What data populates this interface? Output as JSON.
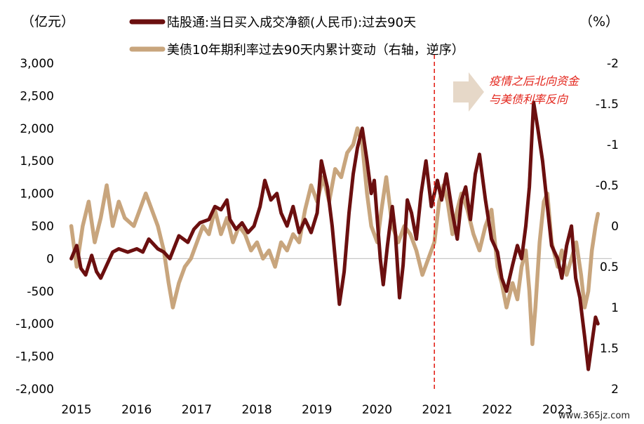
{
  "chart_data": {
    "type": "line",
    "title": "",
    "left_axis": {
      "unit": "（亿元）",
      "ylim": [
        -2000,
        3000
      ],
      "ticks": [
        -2000,
        -1500,
        -1000,
        -500,
        0,
        500,
        1000,
        1500,
        2000,
        2500,
        3000
      ],
      "tick_labels": [
        "-2,000",
        "-1,500",
        "-1,000",
        "-500",
        "0",
        "500",
        "1,000",
        "1,500",
        "2,000",
        "2,500",
        "3,000"
      ]
    },
    "right_axis": {
      "unit": "（%）",
      "inverted": true,
      "ylim": [
        -2,
        2
      ],
      "ticks": [
        -2,
        -1.5,
        -1,
        -0.5,
        0,
        0.5,
        1,
        1.5,
        2
      ],
      "tick_labels": [
        "-2",
        "-1.5",
        "-1",
        "-0.5",
        "0",
        "0.5",
        "1",
        "1.5",
        "2"
      ]
    },
    "x_axis": {
      "xlim": [
        2015.0,
        2023.95
      ],
      "ticks": [
        2015,
        2016,
        2017,
        2018,
        2019,
        2020,
        2021,
        2022,
        2023
      ],
      "tick_labels": [
        "2015",
        "2016",
        "2017",
        "2018",
        "2019",
        "2020",
        "2021",
        "2022",
        "2023"
      ]
    },
    "grid": false,
    "zero_line": true,
    "legend_placement": "top-center",
    "series": [
      {
        "name": "陆股通:当日买入成交净额(人民币):过去90天",
        "axis": "left",
        "color": "#6b0f0f",
        "points": [
          [
            2014.96,
            0
          ],
          [
            2015.05,
            200
          ],
          [
            2015.12,
            -150
          ],
          [
            2015.2,
            -250
          ],
          [
            2015.3,
            50
          ],
          [
            2015.38,
            -200
          ],
          [
            2015.45,
            -300
          ],
          [
            2015.55,
            -100
          ],
          [
            2015.65,
            100
          ],
          [
            2015.75,
            150
          ],
          [
            2015.9,
            100
          ],
          [
            2016.05,
            150
          ],
          [
            2016.15,
            100
          ],
          [
            2016.25,
            300
          ],
          [
            2016.4,
            150
          ],
          [
            2016.5,
            100
          ],
          [
            2016.6,
            0
          ],
          [
            2016.75,
            350
          ],
          [
            2016.9,
            250
          ],
          [
            2017.0,
            450
          ],
          [
            2017.1,
            550
          ],
          [
            2017.25,
            600
          ],
          [
            2017.35,
            800
          ],
          [
            2017.45,
            750
          ],
          [
            2017.55,
            900
          ],
          [
            2017.6,
            600
          ],
          [
            2017.7,
            450
          ],
          [
            2017.8,
            550
          ],
          [
            2017.9,
            400
          ],
          [
            2018.0,
            500
          ],
          [
            2018.1,
            800
          ],
          [
            2018.18,
            1200
          ],
          [
            2018.28,
            900
          ],
          [
            2018.38,
            1000
          ],
          [
            2018.45,
            700
          ],
          [
            2018.55,
            500
          ],
          [
            2018.65,
            800
          ],
          [
            2018.75,
            400
          ],
          [
            2018.85,
            600
          ],
          [
            2018.95,
            400
          ],
          [
            2019.05,
            700
          ],
          [
            2019.12,
            1500
          ],
          [
            2019.22,
            1100
          ],
          [
            2019.3,
            500
          ],
          [
            2019.38,
            -300
          ],
          [
            2019.42,
            -700
          ],
          [
            2019.5,
            -200
          ],
          [
            2019.58,
            700
          ],
          [
            2019.65,
            1300
          ],
          [
            2019.72,
            1700
          ],
          [
            2019.8,
            2000
          ],
          [
            2019.88,
            1500
          ],
          [
            2019.95,
            1000
          ],
          [
            2020.0,
            1200
          ],
          [
            2020.05,
            600
          ],
          [
            2020.1,
            0
          ],
          [
            2020.15,
            -400
          ],
          [
            2020.22,
            200
          ],
          [
            2020.3,
            800
          ],
          [
            2020.35,
            400
          ],
          [
            2020.42,
            -600
          ],
          [
            2020.48,
            -100
          ],
          [
            2020.55,
            900
          ],
          [
            2020.62,
            700
          ],
          [
            2020.7,
            300
          ],
          [
            2020.78,
            1000
          ],
          [
            2020.86,
            1500
          ],
          [
            2020.95,
            800
          ],
          [
            2021.05,
            1200
          ],
          [
            2021.12,
            900
          ],
          [
            2021.2,
            1300
          ],
          [
            2021.3,
            700
          ],
          [
            2021.38,
            300
          ],
          [
            2021.45,
            900
          ],
          [
            2021.52,
            1100
          ],
          [
            2021.6,
            600
          ],
          [
            2021.68,
            1300
          ],
          [
            2021.75,
            1600
          ],
          [
            2021.85,
            900
          ],
          [
            2021.95,
            300
          ],
          [
            2022.05,
            100
          ],
          [
            2022.12,
            -300
          ],
          [
            2022.2,
            -500
          ],
          [
            2022.3,
            -100
          ],
          [
            2022.38,
            200
          ],
          [
            2022.45,
            0
          ],
          [
            2022.52,
            500
          ],
          [
            2022.58,
            1100
          ],
          [
            2022.65,
            2400
          ],
          [
            2022.72,
            2000
          ],
          [
            2022.8,
            1500
          ],
          [
            2022.88,
            800
          ],
          [
            2022.95,
            200
          ],
          [
            2023.05,
            0
          ],
          [
            2023.12,
            -300
          ],
          [
            2023.2,
            200
          ],
          [
            2023.28,
            500
          ],
          [
            2023.35,
            -300
          ],
          [
            2023.42,
            -600
          ],
          [
            2023.5,
            -1200
          ],
          [
            2023.56,
            -1700
          ],
          [
            2023.62,
            -1300
          ],
          [
            2023.68,
            -900
          ],
          [
            2023.72,
            -1000
          ]
        ]
      },
      {
        "name": "美债10年期利率过去90天内累计变动（右轴，逆序）",
        "axis": "right",
        "color": "#c8a57d",
        "points": [
          [
            2014.96,
            0.0
          ],
          [
            2015.05,
            0.5
          ],
          [
            2015.15,
            0.0
          ],
          [
            2015.25,
            -0.3
          ],
          [
            2015.35,
            0.2
          ],
          [
            2015.45,
            -0.1
          ],
          [
            2015.55,
            -0.5
          ],
          [
            2015.65,
            0.0
          ],
          [
            2015.75,
            -0.3
          ],
          [
            2015.85,
            -0.1
          ],
          [
            2016.0,
            0.0
          ],
          [
            2016.1,
            -0.2
          ],
          [
            2016.2,
            -0.4
          ],
          [
            2016.3,
            -0.2
          ],
          [
            2016.4,
            0.0
          ],
          [
            2016.5,
            0.3
          ],
          [
            2016.58,
            0.7
          ],
          [
            2016.65,
            1.0
          ],
          [
            2016.75,
            0.7
          ],
          [
            2016.85,
            0.5
          ],
          [
            2016.95,
            0.4
          ],
          [
            2017.05,
            0.2
          ],
          [
            2017.15,
            0.0
          ],
          [
            2017.25,
            0.1
          ],
          [
            2017.35,
            -0.2
          ],
          [
            2017.45,
            0.1
          ],
          [
            2017.55,
            -0.1
          ],
          [
            2017.65,
            0.2
          ],
          [
            2017.75,
            0.0
          ],
          [
            2017.85,
            0.1
          ],
          [
            2017.95,
            0.3
          ],
          [
            2018.05,
            0.2
          ],
          [
            2018.15,
            0.4
          ],
          [
            2018.25,
            0.3
          ],
          [
            2018.35,
            0.5
          ],
          [
            2018.45,
            0.2
          ],
          [
            2018.55,
            0.3
          ],
          [
            2018.65,
            0.1
          ],
          [
            2018.75,
            0.2
          ],
          [
            2018.85,
            -0.2
          ],
          [
            2018.95,
            -0.5
          ],
          [
            2019.05,
            -0.3
          ],
          [
            2019.15,
            -0.6
          ],
          [
            2019.25,
            -0.3
          ],
          [
            2019.35,
            -0.7
          ],
          [
            2019.45,
            -0.6
          ],
          [
            2019.55,
            -0.9
          ],
          [
            2019.65,
            -1.0
          ],
          [
            2019.72,
            -1.2
          ],
          [
            2019.8,
            -1.0
          ],
          [
            2019.88,
            -0.4
          ],
          [
            2019.95,
            0.0
          ],
          [
            2020.05,
            0.2
          ],
          [
            2020.12,
            -0.2
          ],
          [
            2020.2,
            -0.6
          ],
          [
            2020.3,
            0.0
          ],
          [
            2020.4,
            0.2
          ],
          [
            2020.5,
            0.0
          ],
          [
            2020.6,
            0.1
          ],
          [
            2020.7,
            0.3
          ],
          [
            2020.8,
            0.6
          ],
          [
            2020.9,
            0.4
          ],
          [
            2021.0,
            0.2
          ],
          [
            2021.08,
            -0.3
          ],
          [
            2021.15,
            -0.5
          ],
          [
            2021.22,
            -0.3
          ],
          [
            2021.3,
            0.1
          ],
          [
            2021.38,
            -0.2
          ],
          [
            2021.45,
            -0.4
          ],
          [
            2021.55,
            -0.2
          ],
          [
            2021.65,
            0.1
          ],
          [
            2021.75,
            0.3
          ],
          [
            2021.85,
            0.0
          ],
          [
            2021.95,
            -0.2
          ],
          [
            2022.05,
            0.5
          ],
          [
            2022.12,
            0.7
          ],
          [
            2022.2,
            1.0
          ],
          [
            2022.3,
            0.7
          ],
          [
            2022.38,
            0.9
          ],
          [
            2022.45,
            0.5
          ],
          [
            2022.52,
            0.3
          ],
          [
            2022.58,
            0.8
          ],
          [
            2022.63,
            1.45
          ],
          [
            2022.68,
            1.0
          ],
          [
            2022.75,
            0.2
          ],
          [
            2022.82,
            -0.3
          ],
          [
            2022.88,
            -0.4
          ],
          [
            2022.95,
            0.2
          ],
          [
            2023.05,
            0.5
          ],
          [
            2023.12,
            0.3
          ],
          [
            2023.2,
            0.6
          ],
          [
            2023.28,
            0.4
          ],
          [
            2023.36,
            0.2
          ],
          [
            2023.44,
            0.6
          ],
          [
            2023.5,
            1.0
          ],
          [
            2023.56,
            0.8
          ],
          [
            2023.62,
            0.3
          ],
          [
            2023.68,
            0.0
          ],
          [
            2023.72,
            -0.15
          ]
        ]
      }
    ],
    "vertical_marker": {
      "x": 2021.0,
      "style": "dashed",
      "color": "#e3241b"
    },
    "annotation": {
      "lines": [
        "疫情之后北向资金",
        "与美债利率反向"
      ],
      "color": "#e3241b",
      "arrow_color": "#e6d8c8"
    }
  },
  "watermark": "www.365jz.com"
}
